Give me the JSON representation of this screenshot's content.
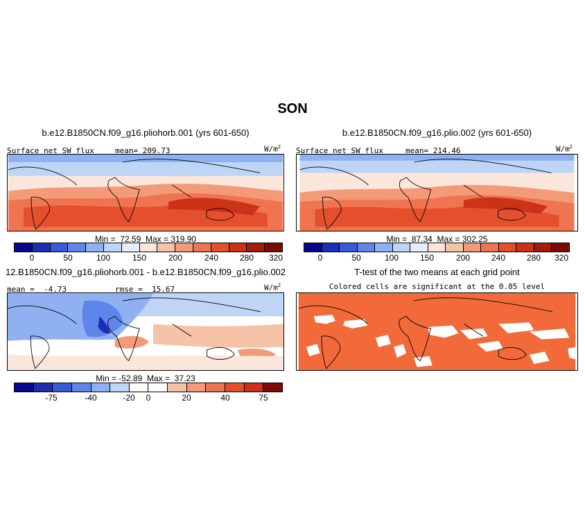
{
  "figure_title": "SON",
  "panels": [
    {
      "title": "b.e12.B1850CN.f09_g16.pliohorb.001 (yrs 601-650)",
      "left_label": "Surface net SW flux",
      "center_label": "mean= 209.73",
      "units": "W/m",
      "units_sup": "2",
      "minmax": "Min =  72.59  Max = 319.90",
      "colorbar_labels": [
        "0",
        "50",
        "100",
        "150",
        "200",
        "240",
        "280",
        "320"
      ]
    },
    {
      "title": "b.e12.B1850CN.f09_g16.plio.002 (yrs 601-650)",
      "left_label": "Surface net SW flux",
      "center_label": "mean= 214.46",
      "units": "W/m",
      "units_sup": "2",
      "minmax": "Min =  87.34  Max = 302.25",
      "colorbar_labels": [
        "0",
        "50",
        "100",
        "150",
        "200",
        "240",
        "280",
        "320"
      ]
    },
    {
      "title": "12.B1850CN.f09_g16.pliohorb.001 - b.e12.B1850CN.f09_g16.plio.002",
      "left_label": "mean =  -4.73",
      "center_label": "rmse =  15.67",
      "units": "W/m",
      "units_sup": "2",
      "minmax": "Min = -52.89  Max =  37.23",
      "colorbar_labels": [
        "-75",
        "-40",
        "-20",
        "0",
        "20",
        "40",
        "75"
      ]
    },
    {
      "title": "T-test of the two means at each grid point",
      "subtitle": "Colored cells are significant at the 0.05 level"
    }
  ],
  "colors": {
    "abs_scale": [
      "#08088c",
      "#1c2fb4",
      "#3a5ad8",
      "#5e86ea",
      "#8fb1f2",
      "#bfd5f6",
      "#e6eefb",
      "#fbe6dc",
      "#f6c2a8",
      "#f39a78",
      "#ef744f",
      "#e4502d",
      "#cc3218",
      "#a31d0c",
      "#7d0a06"
    ],
    "diff_scale": [
      "#08088c",
      "#1c2fb4",
      "#3a5ad8",
      "#5e86ea",
      "#8fb1f2",
      "#bfd5f6",
      "#ffffff",
      "#ffffff",
      "#f6c2a8",
      "#f39a78",
      "#ef744f",
      "#e4502d",
      "#cc3218",
      "#7d0a06"
    ],
    "ttest_fill": "#f26a3a",
    "land_outline": "#000000"
  }
}
